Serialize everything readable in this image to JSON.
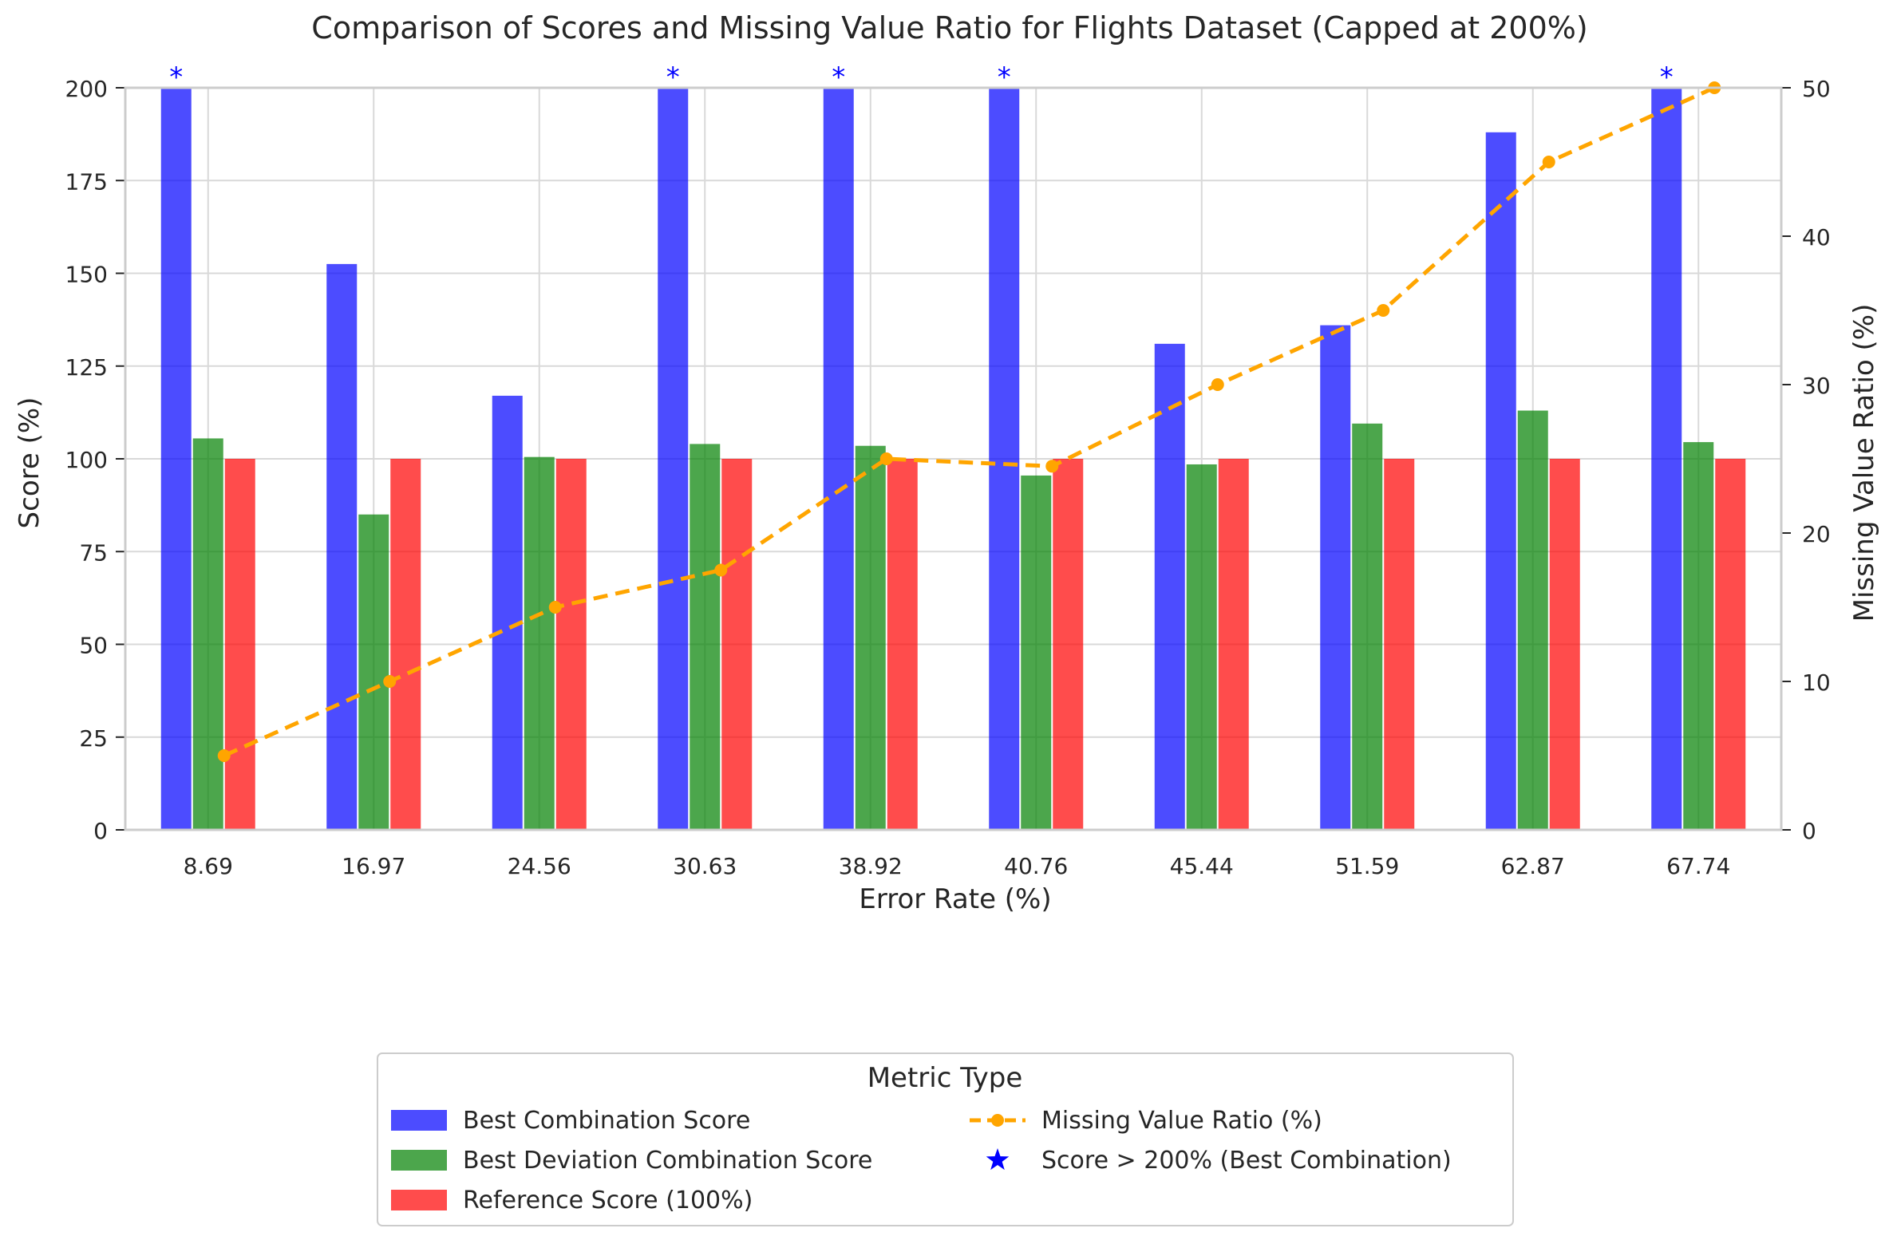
{
  "chart_data": {
    "type": "bar",
    "title": "Comparison of Scores and Missing Value Ratio for Flights Dataset (Capped at 200%)",
    "xlabel": "Error Rate (%)",
    "ylabel": "Score (%)",
    "y2label": "Missing Value Ratio (%)",
    "ylim": [
      0,
      200
    ],
    "y2lim": [
      0,
      50
    ],
    "yticks": [
      "0",
      "25",
      "50",
      "75",
      "100",
      "125",
      "150",
      "175",
      "200"
    ],
    "y2ticks": [
      "0",
      "10",
      "20",
      "30",
      "40",
      "50"
    ],
    "grid": true,
    "categories": [
      "8.69",
      "16.97",
      "24.56",
      "30.63",
      "38.92",
      "40.76",
      "45.44",
      "51.59",
      "62.87",
      "67.74"
    ],
    "series": [
      {
        "name": "Best Combination Score",
        "type": "bar",
        "color": "#0000ff",
        "values": [
          200,
          152.5,
          117,
          200,
          200,
          200,
          131,
          136,
          188,
          200
        ]
      },
      {
        "name": "Best Deviation Combination Score",
        "type": "bar",
        "color": "#008000",
        "values": [
          105.5,
          85,
          100.5,
          104,
          103.5,
          95.5,
          98.5,
          109.5,
          113,
          104.5
        ]
      },
      {
        "name": "Reference Score (100%)",
        "type": "bar",
        "color": "#ff0000",
        "values": [
          100,
          100,
          100,
          100,
          100,
          100,
          100,
          100,
          100,
          100
        ]
      },
      {
        "name": "Missing Value Ratio (%)",
        "type": "line",
        "axis": "right",
        "color": "#ffa500",
        "linestyle": "dashed",
        "values": [
          5,
          10,
          15,
          17.5,
          25,
          24.5,
          30,
          35,
          45,
          50
        ]
      },
      {
        "name": "Score > 200% (Best Combination)",
        "type": "marker",
        "color": "#0000ff",
        "marker": "*",
        "categories": [
          "8.69",
          "30.63",
          "38.92",
          "40.76",
          "67.74"
        ]
      }
    ],
    "legend": {
      "title": "Metric Type",
      "placement": "bottom-center"
    },
    "annotation_text": "*"
  }
}
